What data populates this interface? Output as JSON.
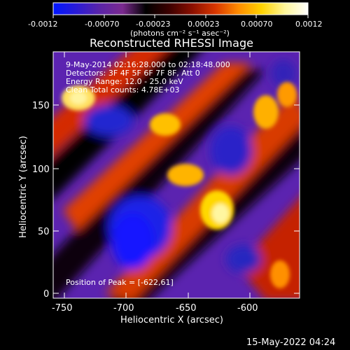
{
  "colorbar": {
    "ticks": [
      "-0.0012",
      "-0.00070",
      "-0.00023",
      "0.00023",
      "0.00070",
      "0.0012"
    ],
    "units": "(photons cm⁻² s⁻¹ asec⁻²)",
    "stops": [
      "#0016ff",
      "#2a1bd6",
      "#5a24a8",
      "#7b2a8f",
      "#000000",
      "#3b0000",
      "#8a0f00",
      "#d83600",
      "#ff8c00",
      "#ffd200",
      "#fff69a",
      "#ffffff"
    ]
  },
  "image": {
    "title": "Reconstructed RHESSI Image",
    "info_lines": [
      "9-May-2014 02:16:28.000  to 02:18:48.000",
      "Detectors: 3F 4F 5F 6F 7F 8F, Att 0",
      "Energy Range: 12.0 - 25.0 keV",
      "Clean      Total counts: 4.78E+03"
    ],
    "peak": "Position of Peak = [-622,61]",
    "xlabel": "Heliocentric X (arcsec)",
    "ylabel": "Heliocentric Y (arcsec)",
    "xticks": [
      "-750",
      "-700",
      "-650",
      "-600"
    ],
    "yticks": [
      "0",
      "50",
      "100",
      "150"
    ],
    "footer_date": "15-May-2022 04:24"
  }
}
